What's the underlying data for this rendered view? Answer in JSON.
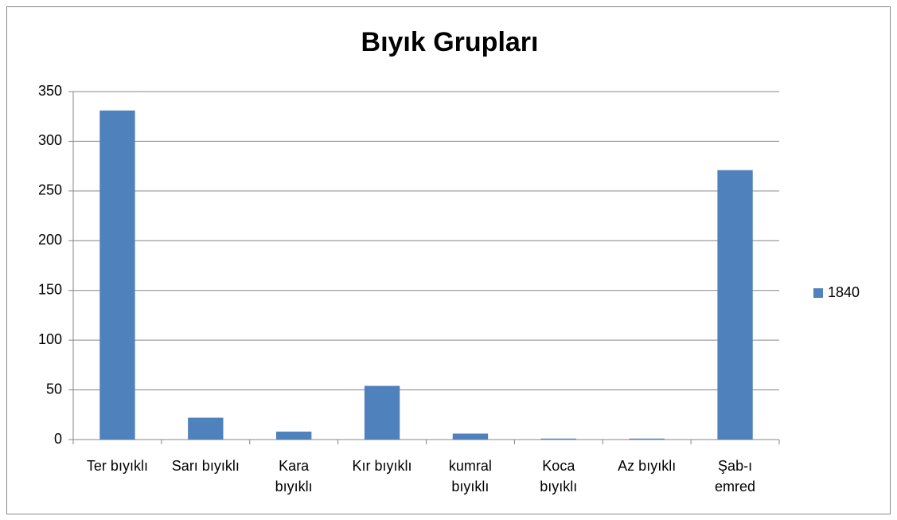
{
  "chart_data": {
    "type": "bar",
    "title": "Bıyık Grupları",
    "categories": [
      "Ter bıyıklı",
      "Sarı bıyıklı",
      "Kara\nbıyıklı",
      "Kır bıyıklı",
      "kumral\nbıyıklı",
      "Koca\nbıyıklı",
      "Az bıyıklı",
      "Şab-ı\nemred"
    ],
    "series": [
      {
        "name": "1840",
        "color": "#4f81bd",
        "values": [
          331,
          22,
          8,
          54,
          6,
          1,
          1,
          271
        ]
      }
    ],
    "ylim": [
      0,
      350
    ],
    "yticks": [
      0,
      50,
      100,
      150,
      200,
      250,
      300,
      350
    ],
    "grid": true,
    "legend": "right"
  }
}
